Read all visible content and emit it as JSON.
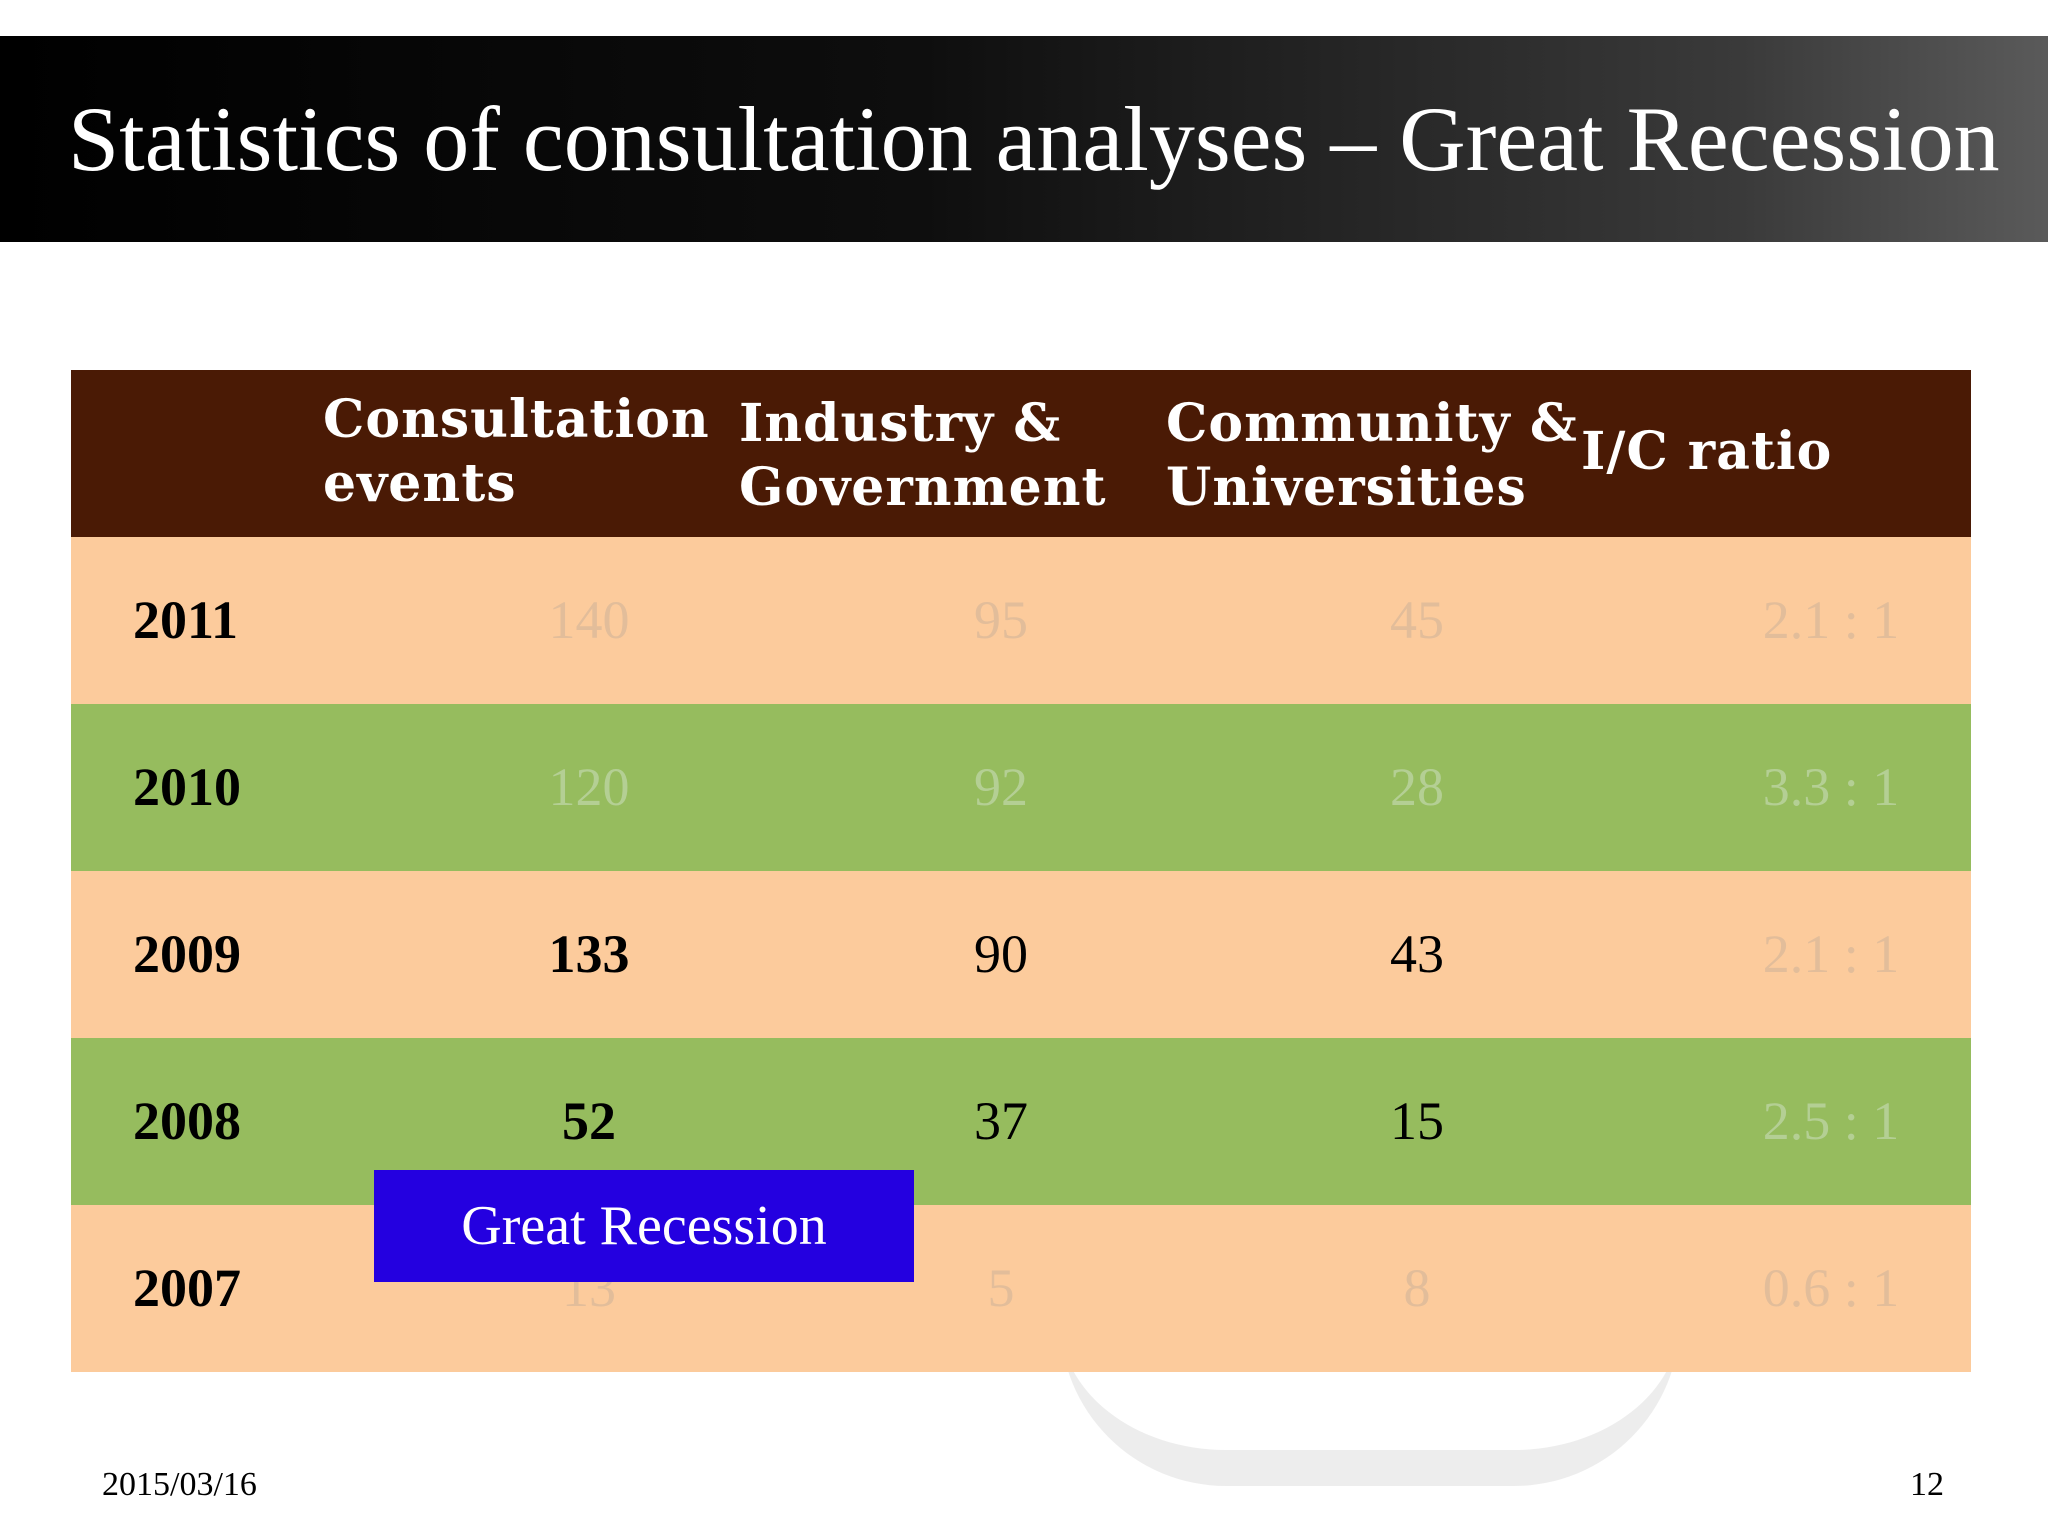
{
  "slide": {
    "title": "Statistics of consultation analyses – Great Recession",
    "date": "2015/03/16",
    "page_number": "12"
  },
  "table": {
    "headers": [
      "",
      "Consultation events",
      "Industry & Government",
      "Community & Universities",
      "I/C ratio"
    ],
    "header_lines": {
      "consultation": [
        "Consultation",
        "events"
      ],
      "industry": [
        "Industry &",
        "Government"
      ],
      "community": [
        "Community &",
        "Universities"
      ],
      "ratio": [
        "I/C ratio"
      ]
    },
    "rows": [
      {
        "year": "2011",
        "consultation": "140",
        "industry": "95",
        "community": "45",
        "ratio": "2.1 : 1"
      },
      {
        "year": "2010",
        "consultation": "120",
        "industry": "92",
        "community": "28",
        "ratio": "3.3 : 1"
      },
      {
        "year": "2009",
        "consultation": "133",
        "industry": "90",
        "community": "43",
        "ratio": "2.1 : 1"
      },
      {
        "year": "2008",
        "consultation": "52",
        "industry": "37",
        "community": "15",
        "ratio": "2.5 : 1"
      },
      {
        "year": "2007",
        "consultation": "13",
        "industry": "5",
        "community": "8",
        "ratio": "0.6 : 1"
      }
    ]
  },
  "annotation": {
    "label": "Great Recession"
  },
  "colors": {
    "header_bg": "#4a1a05",
    "peach_row": "#fccb9c",
    "green_row": "#96bc5e",
    "annotation_bg": "#2400e0"
  }
}
